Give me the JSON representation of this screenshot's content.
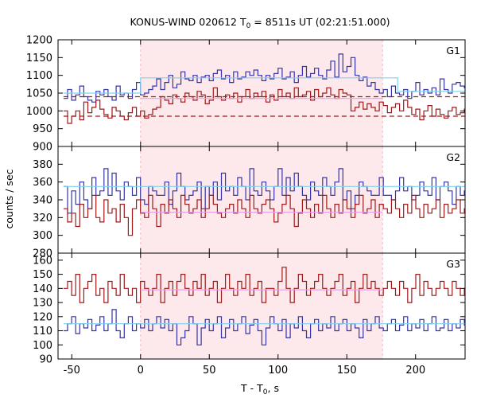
{
  "chart_data": {
    "type": "line",
    "style": "step",
    "title": "KONUS-WIND 020612 T",
    "title_sub": "0",
    "title_rest": " = 8511s UT (02:21:51.000)",
    "xlabel": "T - T",
    "xlabel_sub": "0",
    "xlabel_rest": ", s",
    "ylabel": "counts / sec",
    "xlim": [
      -60,
      236
    ],
    "xticks": [
      -50,
      0,
      50,
      100,
      150,
      200
    ],
    "highlight": {
      "x0": 0,
      "x1": 176,
      "color": "#fde9ec"
    },
    "colors": {
      "blue": "#3434a8",
      "red": "#a01818",
      "fit": "#7fd1f0",
      "pink": "#e8a0e8"
    },
    "panels": [
      {
        "label": "G1",
        "ylim": [
          900,
          1200
        ],
        "yticks": [
          900,
          950,
          1000,
          1050,
          1100,
          1150,
          1200
        ],
        "series": [
          {
            "color_key": "blue",
            "x0": -56,
            "dx": 2.944,
            "values": [
              1035,
              1060,
              1030,
              1045,
              1070,
              1040,
              1030,
              1025,
              1055,
              1045,
              1060,
              1040,
              1030,
              1070,
              1045,
              1050,
              1035,
              1060,
              1080,
              1045,
              1050,
              1060,
              1070,
              1090,
              1060,
              1080,
              1100,
              1065,
              1075,
              1110,
              1090,
              1085,
              1100,
              1080,
              1095,
              1100,
              1085,
              1105,
              1115,
              1090,
              1100,
              1080,
              1110,
              1090,
              1095,
              1110,
              1100,
              1115,
              1100,
              1085,
              1100,
              1090,
              1105,
              1120,
              1090,
              1095,
              1110,
              1080,
              1100,
              1125,
              1095,
              1105,
              1120,
              1100,
              1090,
              1115,
              1140,
              1095,
              1160,
              1110,
              1125,
              1150,
              1100,
              1085,
              1095,
              1070,
              1080,
              1060,
              1050,
              1060,
              1040,
              1070,
              1050,
              1045,
              1060,
              1035,
              1055,
              1080,
              1045,
              1060,
              1050,
              1065,
              1045,
              1090,
              1060,
              1050,
              1075,
              1080,
              1070,
              1065
            ]
          },
          {
            "color_key": "red",
            "x0": -56,
            "dx": 2.944,
            "values": [
              1000,
              965,
              985,
              1000,
              975,
              1025,
              995,
              1010,
              1030,
              1005,
              990,
              980,
              1010,
              1000,
              985,
              975,
              995,
              1010,
              985,
              1000,
              980,
              990,
              1005,
              1010,
              1040,
              1030,
              1020,
              1045,
              1035,
              1025,
              1050,
              1040,
              1030,
              1055,
              1045,
              1020,
              1030,
              1065,
              1040,
              1030,
              1045,
              1035,
              1050,
              1025,
              1040,
              1060,
              1035,
              1050,
              1040,
              1055,
              1025,
              1045,
              1030,
              1060,
              1040,
              1050,
              1035,
              1065,
              1040,
              1045,
              1055,
              1030,
              1060,
              1040,
              1050,
              1065,
              1045,
              1035,
              1060,
              1050,
              1045,
              1000,
              1010,
              1025,
              1005,
              1020,
              1010,
              1000,
              1025,
              1015,
              995,
              1010,
              1020,
              1000,
              1030,
              1010,
              990,
              1005,
              975,
              1000,
              1015,
              985,
              1005,
              990,
              980,
              1000,
              1010,
              990,
              995,
              1005
            ]
          },
          {
            "color_key": "fit",
            "dash": false,
            "points": [
              [
                -56,
                1050
              ],
              [
                0,
                1050
              ],
              [
                0,
                1093
              ],
              [
                187,
                1093
              ],
              [
                187,
                1055
              ],
              [
                236,
                1055
              ]
            ]
          },
          {
            "color_key": "red",
            "dash": true,
            "points": [
              [
                -56,
                985
              ],
              [
                236,
                985
              ]
            ]
          },
          {
            "color_key": "red",
            "dash": true,
            "points": [
              [
                -56,
                1040
              ],
              [
                236,
                1040
              ]
            ]
          },
          {
            "color_key": "pink",
            "dash": false,
            "points": [
              [
                0,
                1035
              ],
              [
                176,
                1035
              ]
            ]
          }
        ]
      },
      {
        "label": "G2",
        "ylim": [
          280,
          400
        ],
        "yticks": [
          280,
          300,
          320,
          340,
          360,
          380
        ],
        "series": [
          {
            "color_key": "blue",
            "x0": -56,
            "dx": 2.944,
            "values": [
              355,
              325,
              350,
              335,
              360,
              340,
              330,
              365,
              345,
              350,
              375,
              345,
              370,
              350,
              340,
              360,
              355,
              345,
              365,
              340,
              335,
              355,
              350,
              345,
              345,
              360,
              335,
              350,
              370,
              355,
              340,
              345,
              350,
              360,
              330,
              355,
              345,
              360,
              340,
              370,
              350,
              355,
              345,
              365,
              355,
              340,
              375,
              350,
              345,
              360,
              350,
              340,
              355,
              375,
              345,
              365,
              350,
              370,
              355,
              345,
              340,
              360,
              350,
              345,
              365,
              355,
              345,
              360,
              375,
              340,
              350,
              330,
              345,
              360,
              355,
              350,
              345,
              345,
              365,
              345,
              345,
              340,
              350,
              365,
              350,
              355,
              340,
              345,
              360,
              350,
              345,
              365,
              340,
              355,
              360,
              350,
              335,
              355,
              345,
              350
            ]
          },
          {
            "color_key": "red",
            "x0": -56,
            "dx": 2.944,
            "values": [
              330,
              315,
              325,
              310,
              335,
              320,
              330,
              345,
              320,
              315,
              340,
              325,
              330,
              315,
              335,
              320,
              300,
              330,
              340,
              325,
              320,
              345,
              330,
              310,
              335,
              325,
              340,
              330,
              320,
              345,
              335,
              325,
              330,
              340,
              320,
              330,
              345,
              335,
              325,
              320,
              330,
              335,
              325,
              340,
              330,
              320,
              345,
              330,
              325,
              335,
              340,
              330,
              315,
              325,
              335,
              345,
              330,
              310,
              325,
              340,
              330,
              320,
              335,
              325,
              345,
              330,
              320,
              335,
              325,
              340,
              330,
              320,
              335,
              345,
              325,
              330,
              340,
              320,
              335,
              330,
              325,
              340,
              330,
              320,
              335,
              325,
              345,
              330,
              320,
              335,
              325,
              330,
              340,
              320,
              335,
              325,
              330,
              340,
              325,
              330
            ]
          },
          {
            "color_key": "fit",
            "dash": false,
            "points": [
              [
                -56,
                355
              ],
              [
                236,
                355
              ]
            ]
          },
          {
            "color_key": "pink",
            "dash": false,
            "points": [
              [
                0,
                326
              ],
              [
                176,
                326
              ]
            ]
          }
        ]
      },
      {
        "label": "G3",
        "ylim": [
          90,
          165
        ],
        "yticks": [
          90,
          100,
          110,
          120,
          130,
          140,
          150,
          160
        ],
        "series": [
          {
            "color_key": "red",
            "x0": -56,
            "dx": 2.944,
            "values": [
              140,
              145,
              135,
              150,
              130,
              140,
              145,
              150,
              135,
              140,
              130,
              145,
              140,
              135,
              150,
              140,
              135,
              140,
              130,
              145,
              140,
              135,
              140,
              150,
              130,
              140,
              145,
              135,
              145,
              150,
              140,
              135,
              145,
              140,
              150,
              135,
              140,
              145,
              130,
              140,
              150,
              140,
              135,
              145,
              140,
              150,
              135,
              140,
              145,
              130,
              140,
              140,
              135,
              145,
              155,
              140,
              130,
              140,
              150,
              145,
              135,
              140,
              145,
              150,
              140,
              135,
              140,
              145,
              150,
              135,
              140,
              145,
              130,
              140,
              150,
              140,
              145,
              140,
              135,
              140,
              145,
              140,
              135,
              145,
              140,
              130,
              140,
              150,
              135,
              145,
              140,
              135,
              140,
              145,
              140,
              135,
              145,
              140,
              135,
              140
            ]
          },
          {
            "color_key": "blue",
            "x0": -56,
            "dx": 2.944,
            "values": [
              110,
              115,
              120,
              108,
              115,
              112,
              118,
              110,
              114,
              120,
              110,
              115,
              125,
              110,
              105,
              115,
              120,
              110,
              115,
              112,
              118,
              110,
              115,
              120,
              112,
              118,
              110,
              115,
              100,
              105,
              110,
              120,
              115,
              100,
              112,
              118,
              110,
              115,
              120,
              105,
              112,
              118,
              110,
              115,
              120,
              108,
              114,
              118,
              110,
              100,
              112,
              120,
              115,
              110,
              118,
              105,
              115,
              112,
              120,
              110,
              105,
              115,
              118,
              110,
              115,
              112,
              120,
              110,
              115,
              118,
              110,
              115,
              112,
              105,
              118,
              110,
              115,
              120,
              112,
              110,
              115,
              118,
              110,
              114,
              120,
              110,
              115,
              112,
              118,
              110,
              115,
              120,
              110,
              112,
              118,
              110,
              115,
              112,
              118,
              114
            ]
          },
          {
            "color_key": "fit",
            "dash": false,
            "points": [
              [
                -56,
                115
              ],
              [
                236,
                115
              ]
            ]
          },
          {
            "color_key": "pink",
            "dash": false,
            "points": [
              [
                0,
                139
              ],
              [
                176,
                139
              ]
            ]
          }
        ]
      }
    ]
  }
}
